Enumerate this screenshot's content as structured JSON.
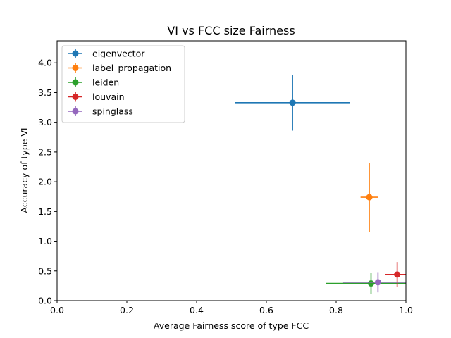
{
  "chart_data": {
    "type": "scatter",
    "title": "VI vs FCC size Fairness",
    "xlabel": "Average Fairness score of type FCC",
    "ylabel": "Accuracy of type VI",
    "xlim": [
      0.0,
      1.0
    ],
    "ylim": [
      0.0,
      4.37
    ],
    "x_ticks": [
      "0.0",
      "0.2",
      "0.4",
      "0.6",
      "0.8",
      "1.0"
    ],
    "y_ticks": [
      "0.0",
      "0.5",
      "1.0",
      "1.5",
      "2.0",
      "2.5",
      "3.0",
      "3.5",
      "4.0"
    ],
    "grid": false,
    "legend_position": "top-left",
    "series": [
      {
        "name": "eigenvector",
        "color": "#1f77b4",
        "x": 0.675,
        "y": 3.33,
        "x_err": 0.165,
        "y_err": 0.47
      },
      {
        "name": "label_propagation",
        "color": "#ff7f0e",
        "x": 0.895,
        "y": 1.74,
        "x_err": 0.025,
        "y_err": 0.58
      },
      {
        "name": "leiden",
        "color": "#2ca02c",
        "x": 0.9,
        "y": 0.29,
        "x_err": 0.13,
        "y_err": 0.18
      },
      {
        "name": "louvain",
        "color": "#d62728",
        "x": 0.975,
        "y": 0.44,
        "x_err": 0.035,
        "y_err": 0.21
      },
      {
        "name": "spinglass",
        "color": "#9467bd",
        "x": 0.92,
        "y": 0.31,
        "x_err": 0.1,
        "y_err": 0.17
      }
    ]
  }
}
